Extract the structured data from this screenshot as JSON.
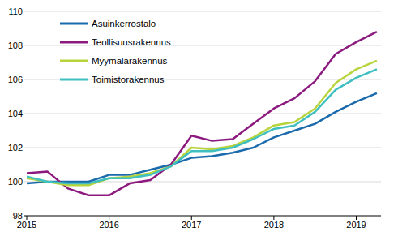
{
  "chart_data": {
    "type": "line",
    "categories": [
      "2015",
      null,
      null,
      null,
      "2016",
      null,
      null,
      null,
      "2017",
      null,
      null,
      null,
      "2018",
      null,
      null,
      null,
      "2019",
      null
    ],
    "series": [
      {
        "name": "Asuinkerrostalo",
        "color": "#1b6aac",
        "values": [
          99.9,
          100.0,
          100.0,
          100.0,
          100.4,
          100.4,
          100.7,
          101.0,
          101.4,
          101.5,
          101.7,
          102.0,
          102.6,
          103.0,
          103.4,
          104.1,
          104.7,
          105.2
        ]
      },
      {
        "name": "Teollisuusrakennus",
        "color": "#8c1a7e",
        "values": [
          100.5,
          100.6,
          99.6,
          99.2,
          99.2,
          99.9,
          100.1,
          101.0,
          102.7,
          102.4,
          102.5,
          103.4,
          104.3,
          104.9,
          105.9,
          107.5,
          108.2,
          108.8
        ]
      },
      {
        "name": "Myymälärakennus",
        "color": "#b7d43c",
        "values": [
          100.2,
          100.0,
          99.8,
          99.8,
          100.2,
          100.3,
          100.5,
          100.9,
          102.0,
          101.9,
          102.1,
          102.6,
          103.3,
          103.5,
          104.3,
          105.8,
          106.6,
          107.1
        ]
      },
      {
        "name": "Toimistorakennus",
        "color": "#3fbfc0",
        "values": [
          100.3,
          100.0,
          99.9,
          99.9,
          100.2,
          100.2,
          100.4,
          100.9,
          101.8,
          101.8,
          102.0,
          102.5,
          103.1,
          103.3,
          104.1,
          105.4,
          106.1,
          106.6
        ]
      }
    ],
    "ylim": [
      98,
      110
    ],
    "yticks": [
      98,
      100,
      102,
      104,
      106,
      108,
      110
    ],
    "grid": true,
    "legend": "top-left"
  }
}
